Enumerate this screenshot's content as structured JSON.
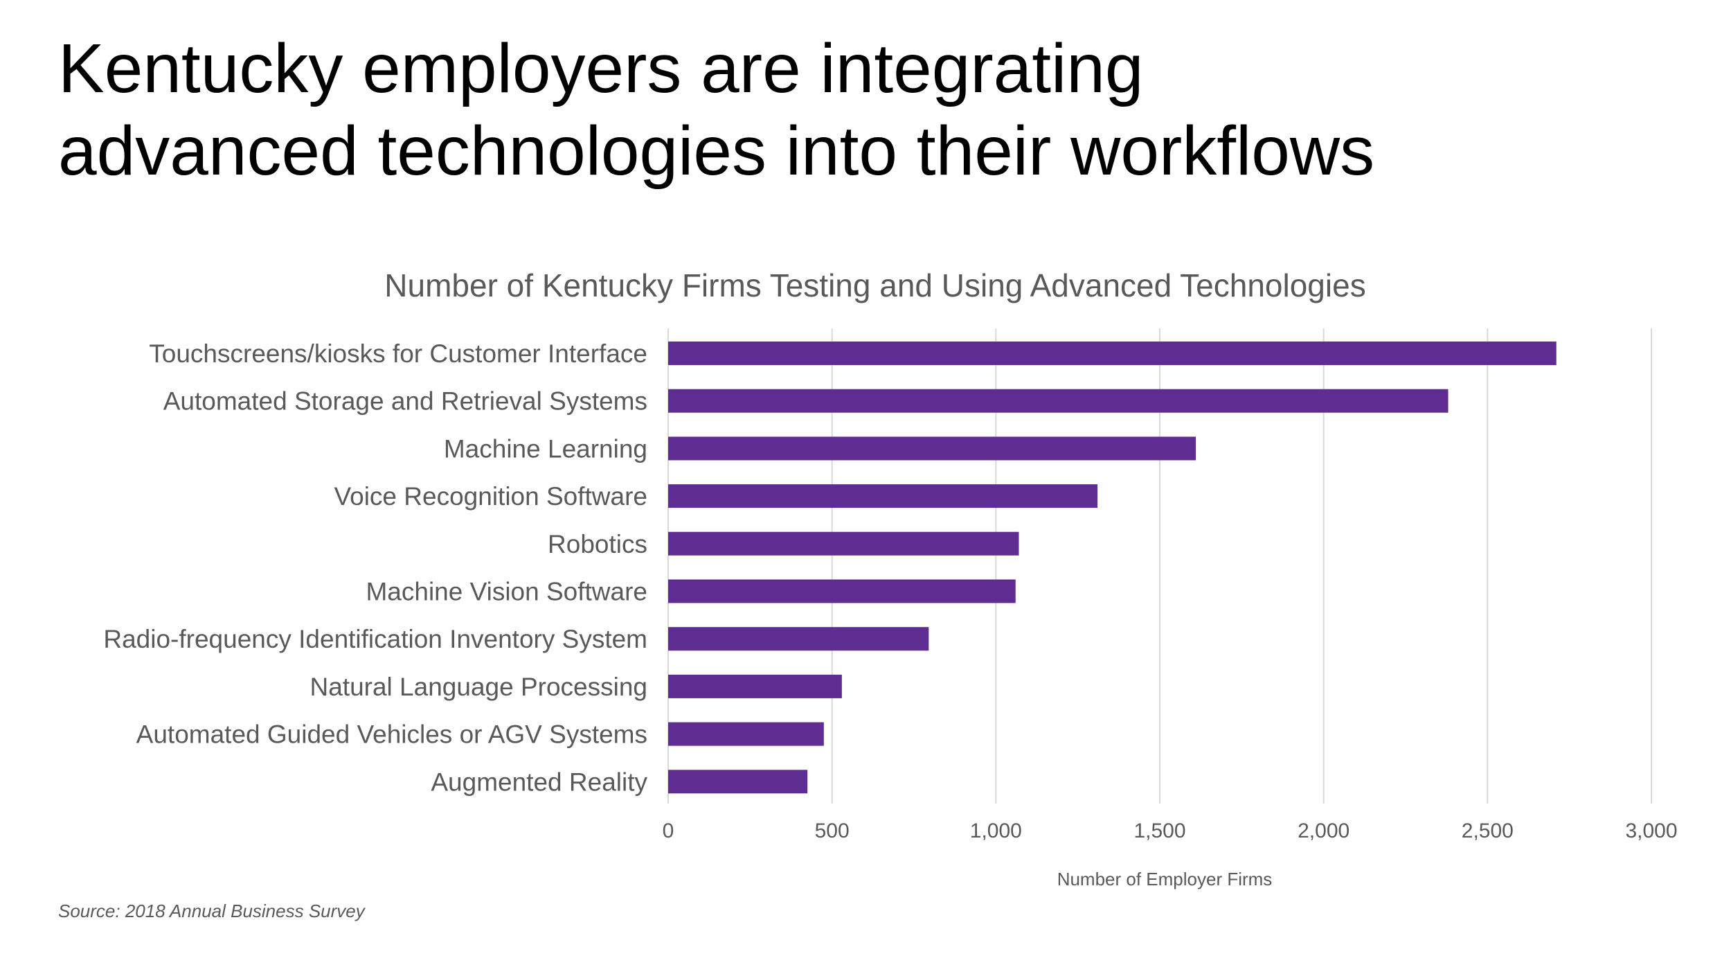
{
  "slide": {
    "title_line1": "Kentucky employers are integrating",
    "title_line2": "advanced technologies into their workflows",
    "source": "Source: 2018 Annual Business Survey"
  },
  "chart_data": {
    "type": "bar",
    "orientation": "horizontal",
    "title": "Number of Kentucky Firms Testing and Using Advanced Technologies",
    "xlabel": "Number of Employer Firms",
    "ylabel": "",
    "categories": [
      "Touchscreens/kiosks for Customer Interface",
      "Automated Storage and Retrieval Systems",
      "Machine Learning",
      "Voice Recognition Software",
      "Robotics",
      "Machine Vision Software",
      "Radio-frequency Identification Inventory System",
      "Natural Language Processing",
      "Automated Guided Vehicles or AGV Systems",
      "Augmented Reality"
    ],
    "values": [
      2710,
      2380,
      1610,
      1310,
      1070,
      1060,
      795,
      530,
      475,
      425
    ],
    "xlim": [
      0,
      3000
    ],
    "xticks": [
      0,
      500,
      1000,
      1500,
      2000,
      2500,
      3000
    ],
    "xtick_labels": [
      "0",
      "500",
      "1,000",
      "1,500",
      "2,000",
      "2,500",
      "3,000"
    ],
    "grid": "vertical",
    "legend": "none",
    "colors": {
      "bar": "#5F2C91",
      "grid": "#D9D9D9",
      "text": "#595959"
    }
  }
}
